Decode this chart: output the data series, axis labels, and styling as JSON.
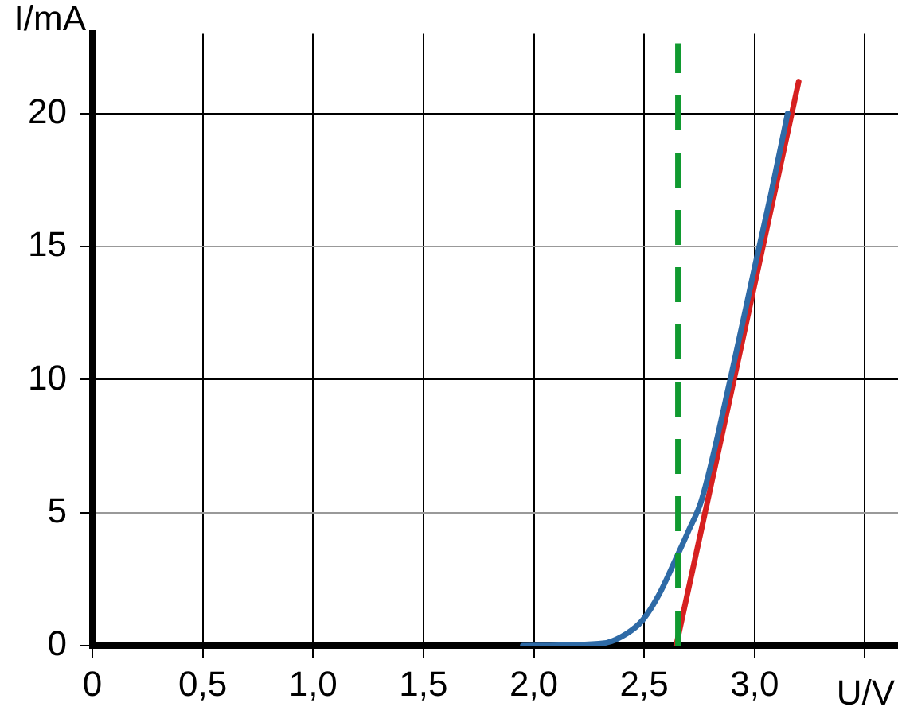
{
  "chart_data": {
    "type": "line",
    "xlabel": "U/V",
    "ylabel": "I/mA",
    "xlim": [
      0,
      3.65
    ],
    "ylim": [
      0,
      23
    ],
    "xticks": [
      0,
      {
        "value": 0.5,
        "label": "0,5"
      },
      {
        "value": 1.0,
        "label": "1,0"
      },
      {
        "value": 1.5,
        "label": "1,5"
      },
      {
        "value": 2.0,
        "label": "2,0"
      },
      {
        "value": 2.5,
        "label": "2,5"
      },
      {
        "value": 3.0,
        "label": "3,0"
      },
      {
        "value": 3.5,
        "label": null
      }
    ],
    "yticks": [
      0,
      5,
      10,
      15,
      20
    ],
    "grid": true,
    "legend": false,
    "marker": "none",
    "line_style": "solid",
    "series": [
      {
        "color": "#2e6aa6",
        "x": [
          1.95,
          2.32,
          2.42,
          2.49,
          2.566,
          2.64,
          2.7,
          2.76,
          2.89,
          3.0,
          3.075,
          3.15
        ],
        "values": [
          0,
          0.1,
          0.45,
          0.93,
          1.9,
          3.2,
          4.3,
          5.47,
          10.0,
          14.2,
          17.0,
          20.0
        ]
      },
      {
        "color": "#d62020",
        "x": [
          2.645,
          3.2
        ],
        "values": [
          0,
          21.2
        ]
      }
    ],
    "ref_lines": [
      {
        "axis": "x",
        "value": 2.653,
        "color": "#109a30",
        "line_style": "dashed"
      }
    ]
  }
}
